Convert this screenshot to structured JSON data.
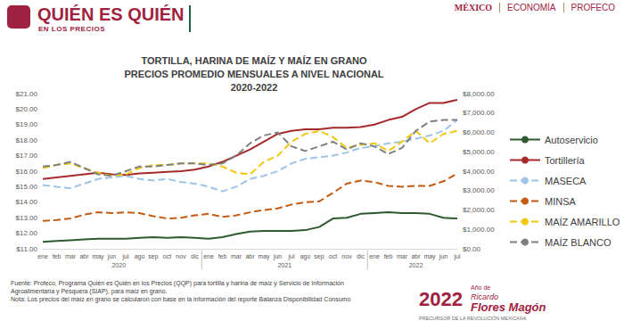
{
  "header": {
    "title": "QUIÉN ES QUIÉN",
    "subtitle": "EN LOS PRECIOS",
    "logos": [
      "MÉXICO",
      "ECONOMÍA",
      "PROFECO"
    ]
  },
  "footer": {
    "source": "Fuente: Profeco, Programa Quién es Quién en los Precios (QQP) para tortilla y harina de maíz y Servicio de Información Agroalimentaria y Pesquera (SIAP), para maíz en grano.",
    "note": "Nota: Los precios del maíz en grano se calcularon con base en la información del reporte Balanza Disponibilidad Consumo"
  },
  "seal": {
    "year": "2022",
    "prefix": "Año de",
    "name_first": "Ricardo",
    "name_last": "Flores Magón",
    "caption": "PRECURSOR DE LA REVOLUCIÓN MEXICANA"
  },
  "chart_data": {
    "type": "line",
    "title": "TORTILLA, HARINA DE MAÍZ Y MAÍZ EN GRANO\nPRECIOS PROMEDIO MENSUALES A NIVEL NACIONAL\n2020-2022",
    "categories": [
      "ene",
      "feb",
      "mar",
      "abr",
      "may",
      "jun",
      "jul",
      "ago",
      "sep",
      "oct",
      "nov",
      "dic",
      "ene",
      "feb",
      "mar",
      "abr",
      "may",
      "jun",
      "jul",
      "ago",
      "sep",
      "oct",
      "nov",
      "dic",
      "ene",
      "feb",
      "mar",
      "abr",
      "may",
      "jun",
      "jul"
    ],
    "year_labels": [
      "2020",
      "2021",
      "2022"
    ],
    "ylim": [
      11,
      21
    ],
    "yticks": [
      {
        "value": 11,
        "label": "$11.00"
      },
      {
        "value": 12,
        "label": "$12.00"
      },
      {
        "value": 13,
        "label": "$13.00"
      },
      {
        "value": 14,
        "label": "$14.00"
      },
      {
        "value": 15,
        "label": "$15.00"
      },
      {
        "value": 16,
        "label": "$16.00"
      },
      {
        "value": 17,
        "label": "$17.00"
      },
      {
        "value": 18,
        "label": "$18.00"
      },
      {
        "value": 19,
        "label": "$19.00"
      },
      {
        "value": 20,
        "label": "$20.00"
      },
      {
        "value": 21,
        "label": "$21.00"
      }
    ],
    "y2lim": [
      0,
      8000
    ],
    "y2ticks": [
      {
        "value": 0,
        "label": "$0.00"
      },
      {
        "value": 1000,
        "label": "$1,000.00"
      },
      {
        "value": 2000,
        "label": "$2,000.00"
      },
      {
        "value": 3000,
        "label": "$3,000.00"
      },
      {
        "value": 4000,
        "label": "$4,000.00"
      },
      {
        "value": 5000,
        "label": "$5,000.00"
      },
      {
        "value": 6000,
        "label": "$6,000.00"
      },
      {
        "value": 7000,
        "label": "$7,000.00"
      },
      {
        "value": 8000,
        "label": "$8,000.00"
      }
    ],
    "grid": false,
    "legend": "right",
    "series": [
      {
        "name": "Autoservicio",
        "color": "#2e5a2e",
        "line_style": "solid",
        "values": [
          11.45,
          11.5,
          11.55,
          11.6,
          11.65,
          11.65,
          11.65,
          11.7,
          11.75,
          11.7,
          11.75,
          11.7,
          11.65,
          11.75,
          11.95,
          12.1,
          12.15,
          12.15,
          12.15,
          12.2,
          12.4,
          12.95,
          13.0,
          13.25,
          13.3,
          13.35,
          13.3,
          13.3,
          13.25,
          13.0,
          12.95
        ]
      },
      {
        "name": "Tortillería",
        "color": "#a52a2a",
        "line_style": "solid",
        "values": [
          15.5,
          15.6,
          15.7,
          15.8,
          15.9,
          15.8,
          15.75,
          15.85,
          15.9,
          15.95,
          16.0,
          16.1,
          16.3,
          16.6,
          17.0,
          17.4,
          17.9,
          18.4,
          18.6,
          18.7,
          18.7,
          18.8,
          18.8,
          18.85,
          19.0,
          19.3,
          19.5,
          20.0,
          20.4,
          20.4,
          20.6
        ]
      },
      {
        "name": "MASECA",
        "color": "#9dc3e6",
        "line_style": "dashed",
        "values": [
          15.1,
          15.0,
          14.9,
          15.2,
          15.5,
          15.6,
          15.7,
          15.5,
          15.4,
          15.5,
          15.3,
          15.2,
          15.0,
          14.7,
          15.0,
          15.5,
          15.7,
          16.0,
          16.5,
          16.8,
          16.9,
          17.0,
          17.2,
          17.5,
          17.6,
          17.8,
          17.9,
          18.1,
          18.3,
          18.6,
          19.3
        ]
      },
      {
        "name": "MINSA",
        "color": "#c55a11",
        "line_style": "dashed",
        "values": [
          12.8,
          12.85,
          12.95,
          13.2,
          13.35,
          13.3,
          13.35,
          13.3,
          13.1,
          12.95,
          13.0,
          13.15,
          13.25,
          13.05,
          13.15,
          13.35,
          13.5,
          13.6,
          13.85,
          14.0,
          14.05,
          14.6,
          15.2,
          15.4,
          15.3,
          15.05,
          15.0,
          15.05,
          15.05,
          15.35,
          15.85
        ]
      },
      {
        "name": "MAÍZ AMARILLO",
        "color": "#f2c80f",
        "line_style": "dashed",
        "axis": "y2",
        "values": [
          4160,
          4320,
          4400,
          4160,
          3920,
          3760,
          3840,
          4160,
          4320,
          4320,
          4400,
          4400,
          4400,
          4240,
          3920,
          3840,
          4480,
          4800,
          5520,
          5920,
          6080,
          5760,
          5200,
          5360,
          5440,
          5040,
          5520,
          6080,
          5440,
          5920,
          6080
        ]
      },
      {
        "name": "MAÍZ BLANCO",
        "color": "#7f7f7f",
        "line_style": "dashed",
        "axis": "y2",
        "values": [
          4240,
          4320,
          4480,
          4160,
          3840,
          3760,
          4000,
          4240,
          4240,
          4320,
          4400,
          4400,
          4320,
          4400,
          4800,
          5440,
          5840,
          6000,
          5280,
          5040,
          5280,
          5520,
          5120,
          5440,
          5280,
          4880,
          5200,
          6080,
          6560,
          6640,
          6640
        ]
      }
    ]
  }
}
